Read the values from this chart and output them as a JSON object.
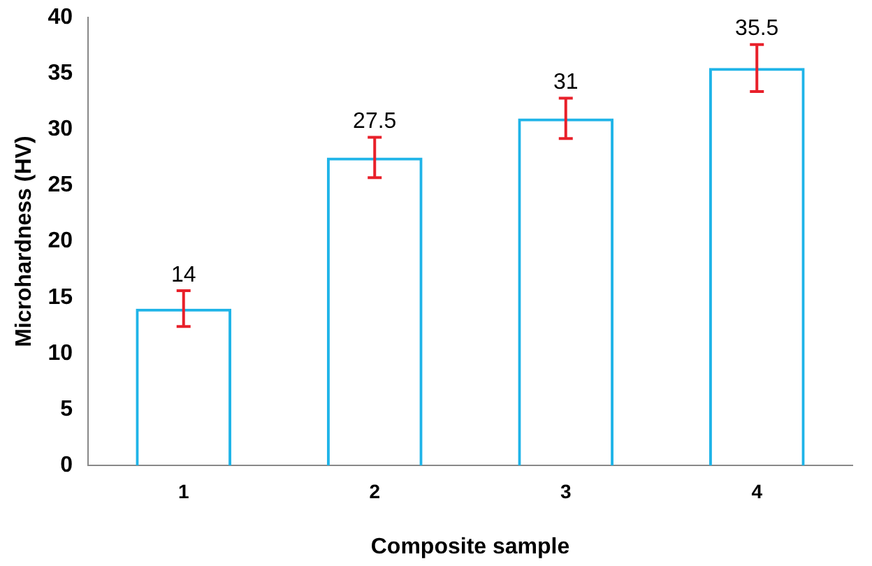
{
  "chart_data": {
    "type": "bar",
    "xlabel": "Composite sample",
    "ylabel": "Microhardness (HV)",
    "categories": [
      "1",
      "2",
      "3",
      "4"
    ],
    "values": [
      14,
      27.5,
      31,
      35.5
    ],
    "errors": [
      1.6,
      1.8,
      1.8,
      2.1
    ],
    "color": "#1fb4e8",
    "ylim": [
      0,
      40
    ],
    "yticks": [
      0,
      5,
      10,
      15,
      20,
      25,
      30,
      35,
      40
    ],
    "grid": false,
    "legend": false,
    "data_labels": true
  }
}
